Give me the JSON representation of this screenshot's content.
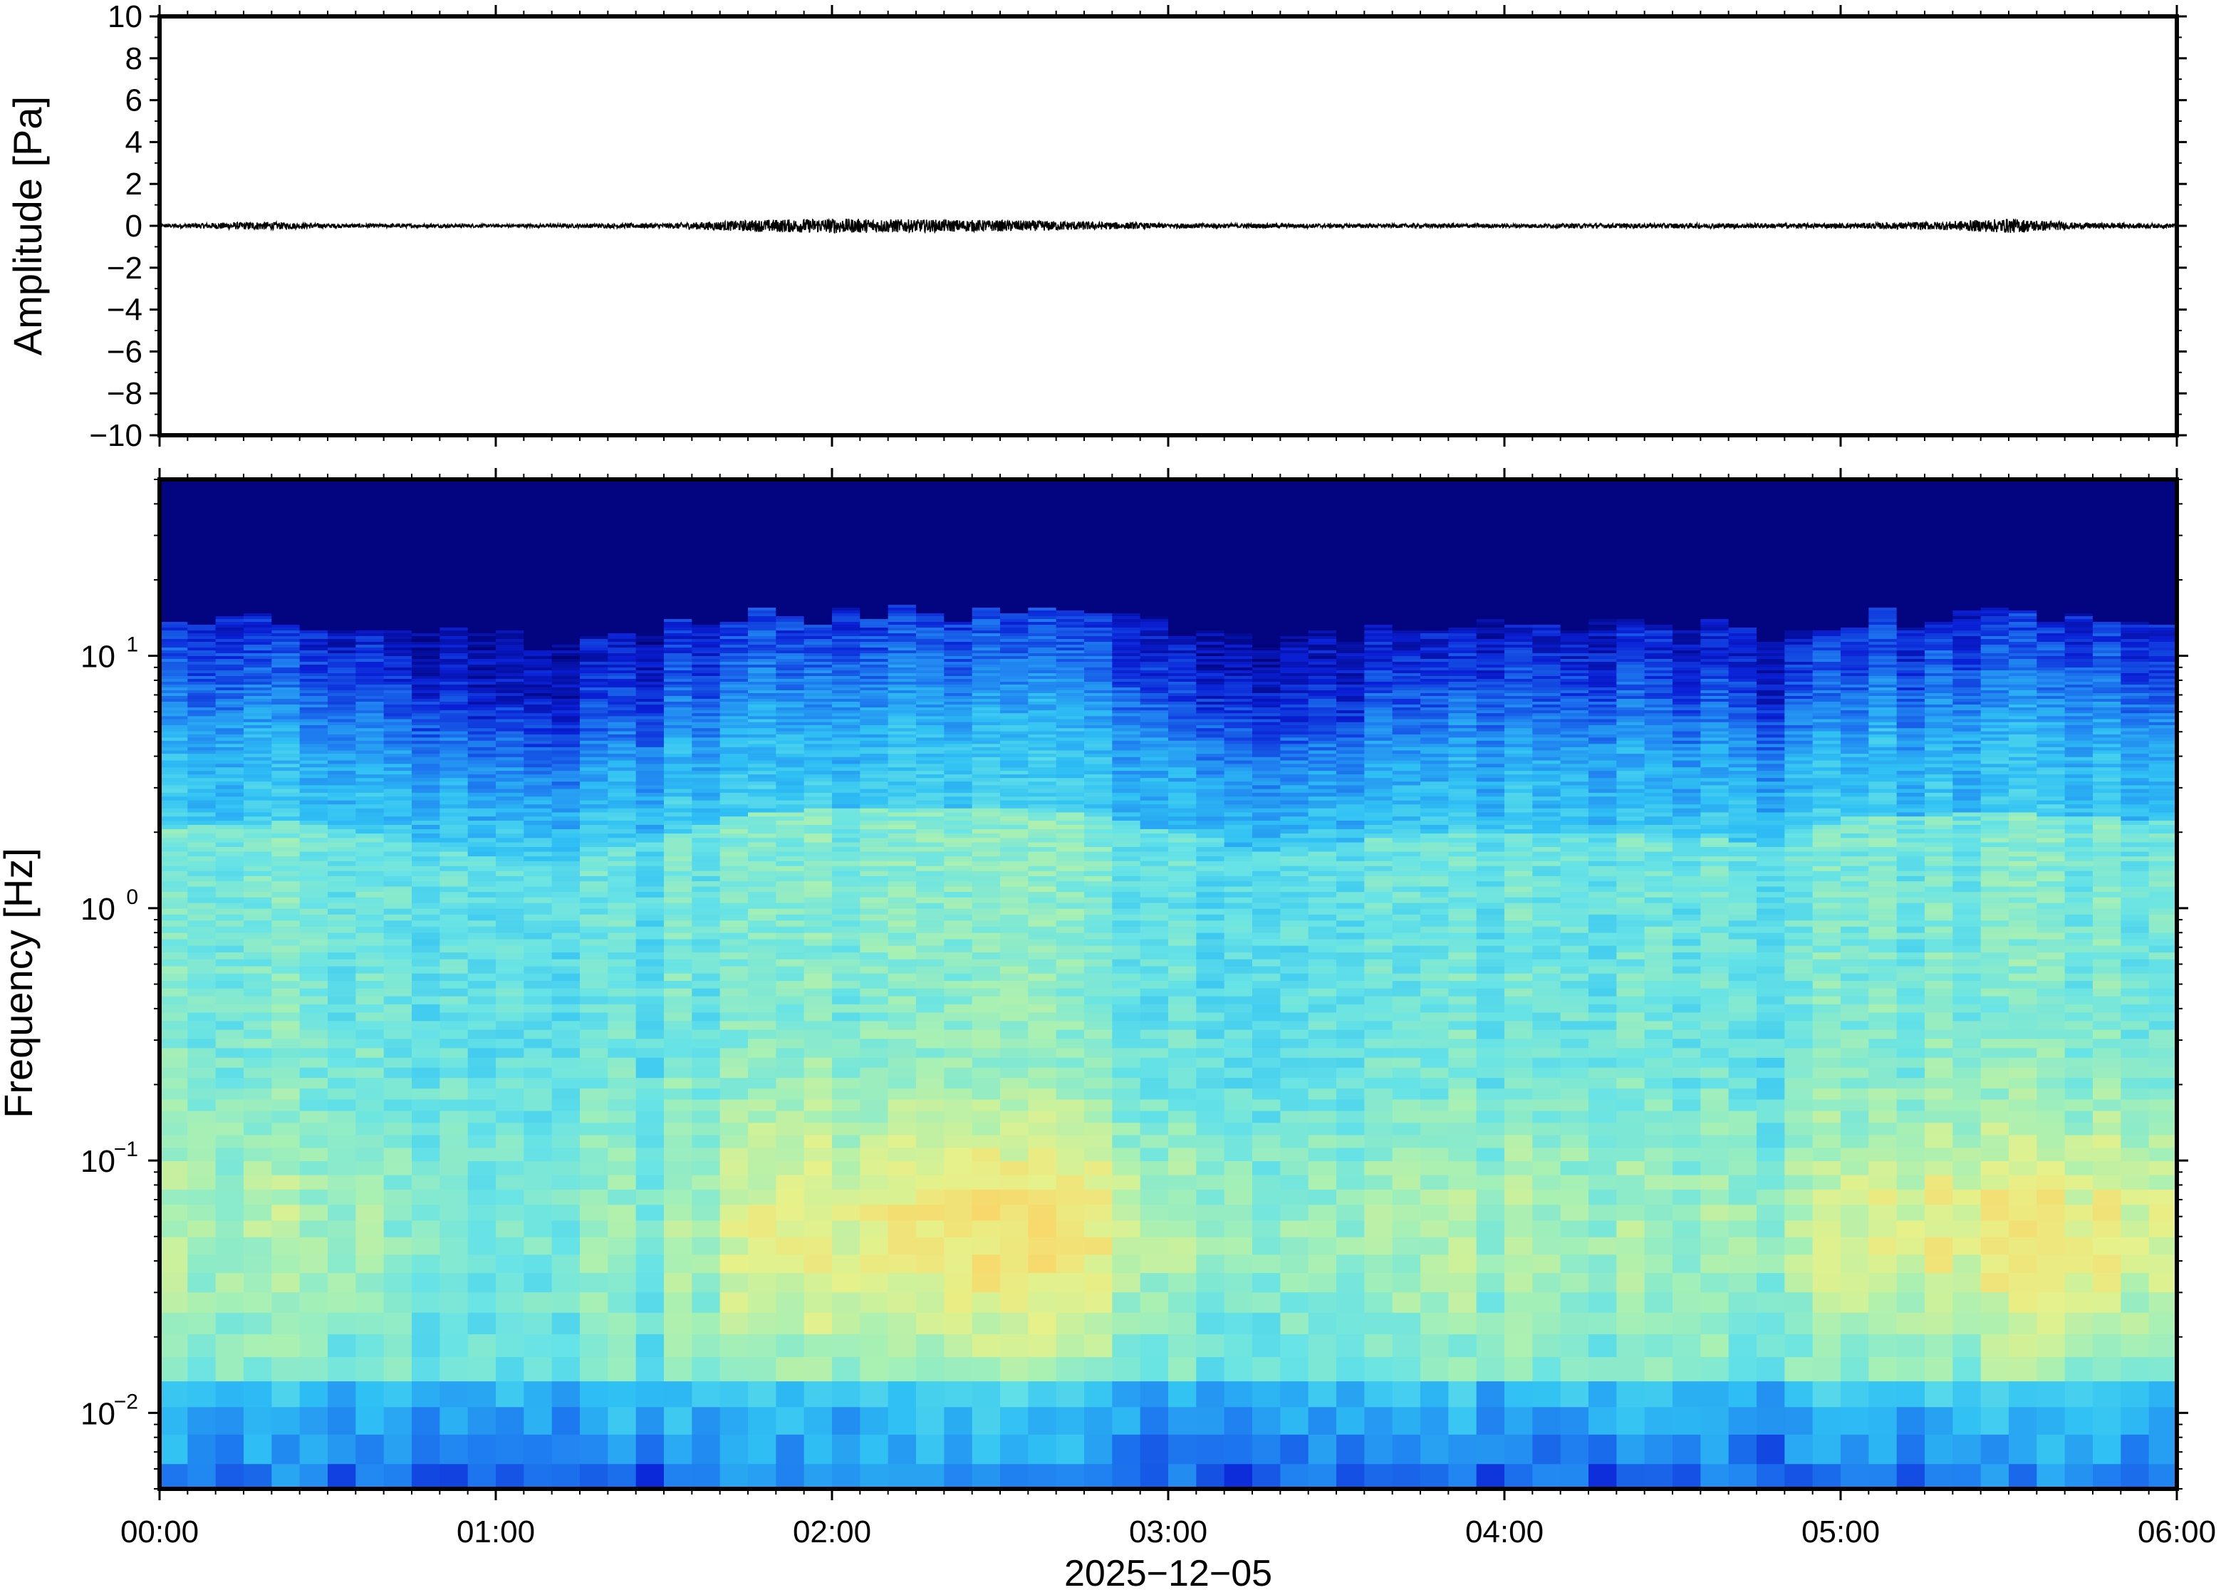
{
  "chart_data": [
    {
      "type": "line",
      "panel": "waveform",
      "ylabel": "Amplitude [Pa]",
      "ylim": [
        -10,
        10
      ],
      "yticks": [
        10,
        8,
        6,
        4,
        2,
        0,
        -2,
        -4,
        -6,
        -8,
        -10
      ],
      "ytick_labels": [
        "10",
        "8",
        "6",
        "4",
        "2",
        "0",
        "−2",
        "−4",
        "−6",
        "−8",
        "−10"
      ],
      "x_range_hours": [
        0,
        6
      ],
      "series": [
        {
          "color": "#000000",
          "envelope_hours": [
            0.0,
            0.3,
            0.5,
            1.0,
            1.5,
            1.8,
            2.0,
            2.3,
            2.6,
            3.0,
            3.5,
            4.0,
            4.5,
            5.0,
            5.3,
            5.5,
            5.7,
            6.0
          ],
          "envelope_amplitude_pa": [
            0.08,
            0.2,
            0.1,
            0.08,
            0.12,
            0.3,
            0.35,
            0.3,
            0.25,
            0.12,
            0.1,
            0.1,
            0.12,
            0.12,
            0.2,
            0.35,
            0.15,
            0.1
          ]
        }
      ]
    },
    {
      "type": "heatmap",
      "panel": "spectrogram",
      "ylabel": "Frequency [Hz]",
      "yscale": "log",
      "ylim": [
        0.005,
        50
      ],
      "yticks": [
        0.01,
        0.1,
        1,
        10
      ],
      "ytick_labels": [
        {
          "base": "10",
          "exp": "−2"
        },
        {
          "base": "10",
          "exp": "−1"
        },
        {
          "base": "10",
          "exp": "0"
        },
        {
          "base": "10",
          "exp": "1"
        }
      ],
      "colormap": "jet",
      "colormap_stops": [
        "#00006e",
        "#0a1fd6",
        "#1e7cf0",
        "#2fc0f4",
        "#67e3e6",
        "#a8f0b4",
        "#e6f18a",
        "#f8d86a",
        "#f6a84e"
      ],
      "x_range_hours": [
        0,
        6
      ],
      "profile_hours": [
        0.0,
        0.4,
        0.7,
        1.0,
        1.1,
        1.3,
        1.5,
        1.7,
        2.0,
        2.5,
        2.8,
        3.0,
        3.4,
        3.6,
        4.0,
        4.4,
        4.8,
        5.0,
        5.5,
        6.0
      ],
      "profile_quietness": [
        0.3,
        0.2,
        0.45,
        0.8,
        0.9,
        0.7,
        0.45,
        0.1,
        0.0,
        0.0,
        0.1,
        0.35,
        0.75,
        0.45,
        0.35,
        0.4,
        0.55,
        0.15,
        0.05,
        0.2
      ],
      "profile_loudness": [
        0.3,
        0.35,
        0.25,
        0.2,
        0.15,
        0.25,
        0.3,
        0.55,
        0.7,
        0.85,
        0.75,
        0.45,
        0.35,
        0.4,
        0.4,
        0.35,
        0.35,
        0.55,
        0.85,
        0.65
      ]
    }
  ],
  "x_axis": {
    "tick_labels": [
      "00:00",
      "01:00",
      "02:00",
      "03:00",
      "04:00",
      "05:00",
      "06:00"
    ],
    "date_label": "2025−12−05"
  }
}
